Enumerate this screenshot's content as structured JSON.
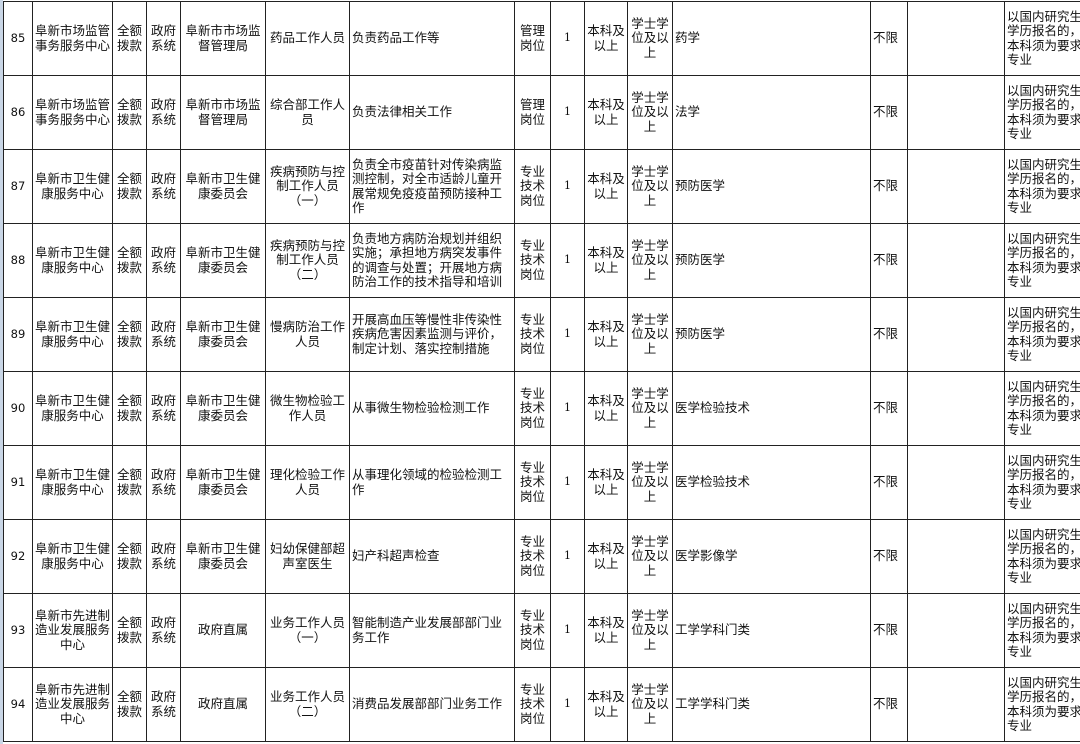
{
  "rows": [
    [
      "85",
      "阜新市场监管事务服务中心",
      "全额拨款",
      "政府系统",
      "阜新市市场监督管理局",
      "药品工作人员",
      "负责药品工作等",
      "管理岗位",
      "1",
      "本科及以上",
      "学士学位及以上",
      "药学",
      "不限",
      "",
      "以国内研究生学历报名的，本科须为要求专业"
    ],
    [
      "86",
      "阜新市场监管事务服务中心",
      "全额拨款",
      "政府系统",
      "阜新市市场监督管理局",
      "综合部工作人员",
      "负责法律相关工作",
      "管理岗位",
      "1",
      "本科及以上",
      "学士学位及以上",
      "法学",
      "不限",
      "",
      "以国内研究生学历报名的，本科须为要求专业"
    ],
    [
      "87",
      "阜新市卫生健康服务中心",
      "全额拨款",
      "政府系统",
      "阜新市卫生健康委员会",
      "疾病预防与控制工作人员（一）",
      "负责全市疫苗针对传染病监测控制，对全市适龄儿童开展常规免疫疫苗预防接种工作",
      "专业技术岗位",
      "1",
      "本科及以上",
      "学士学位及以上",
      "预防医学",
      "不限",
      "",
      "以国内研究生学历报名的，本科须为要求专业"
    ],
    [
      "88",
      "阜新市卫生健康服务中心",
      "全额拨款",
      "政府系统",
      "阜新市卫生健康委员会",
      "疾病预防与控制工作人员（二）",
      "负责地方病防治规划并组织实施；承担地方病突发事件的调查与处置；开展地方病防治工作的技术指导和培训",
      "专业技术岗位",
      "1",
      "本科及以上",
      "学士学位及以上",
      "预防医学",
      "不限",
      "",
      "以国内研究生学历报名的，本科须为要求专业"
    ],
    [
      "89",
      "阜新市卫生健康服务中心",
      "全额拨款",
      "政府系统",
      "阜新市卫生健康委员会",
      "慢病防治工作人员",
      "开展高血压等慢性非传染性疾病危害因素监测与评价，制定计划、落实控制措施",
      "专业技术岗位",
      "1",
      "本科及以上",
      "学士学位及以上",
      "预防医学",
      "不限",
      "",
      "以国内研究生学历报名的，本科须为要求专业"
    ],
    [
      "90",
      "阜新市卫生健康服务中心",
      "全额拨款",
      "政府系统",
      "阜新市卫生健康委员会",
      "微生物检验工作人员",
      "从事微生物检验检测工作",
      "专业技术岗位",
      "1",
      "本科及以上",
      "学士学位及以上",
      "医学检验技术",
      "不限",
      "",
      "以国内研究生学历报名的，本科须为要求专业"
    ],
    [
      "91",
      "阜新市卫生健康服务中心",
      "全额拨款",
      "政府系统",
      "阜新市卫生健康委员会",
      "理化检验工作人员",
      "从事理化领域的检验检测工作",
      "专业技术岗位",
      "1",
      "本科及以上",
      "学士学位及以上",
      "医学检验技术",
      "不限",
      "",
      "以国内研究生学历报名的，本科须为要求专业"
    ],
    [
      "92",
      "阜新市卫生健康服务中心",
      "全额拨款",
      "政府系统",
      "阜新市卫生健康委员会",
      "妇幼保健部超声室医生",
      "妇产科超声检查",
      "专业技术岗位",
      "1",
      "本科及以上",
      "学士学位及以上",
      "医学影像学",
      "不限",
      "",
      "以国内研究生学历报名的，本科须为要求专业"
    ],
    [
      "93",
      "阜新市先进制造业发展服务中心",
      "全额拨款",
      "政府系统",
      "政府直属",
      "业务工作人员（一）",
      "智能制造产业发展部部门业务工作",
      "专业技术岗位",
      "1",
      "本科及以上",
      "学士学位及以上",
      "工学学科门类",
      "不限",
      "",
      "以国内研究生学历报名的，本科须为要求专业"
    ],
    [
      "94",
      "阜新市先进制造业发展服务中心",
      "全额拨款",
      "政府系统",
      "政府直属",
      "业务工作人员（二）",
      "消费品发展部部门业务工作",
      "专业技术岗位",
      "1",
      "本科及以上",
      "学士学位及以上",
      "工学学科门类",
      "不限",
      "",
      "以国内研究生学历报名的，本科须为要求专业"
    ]
  ]
}
